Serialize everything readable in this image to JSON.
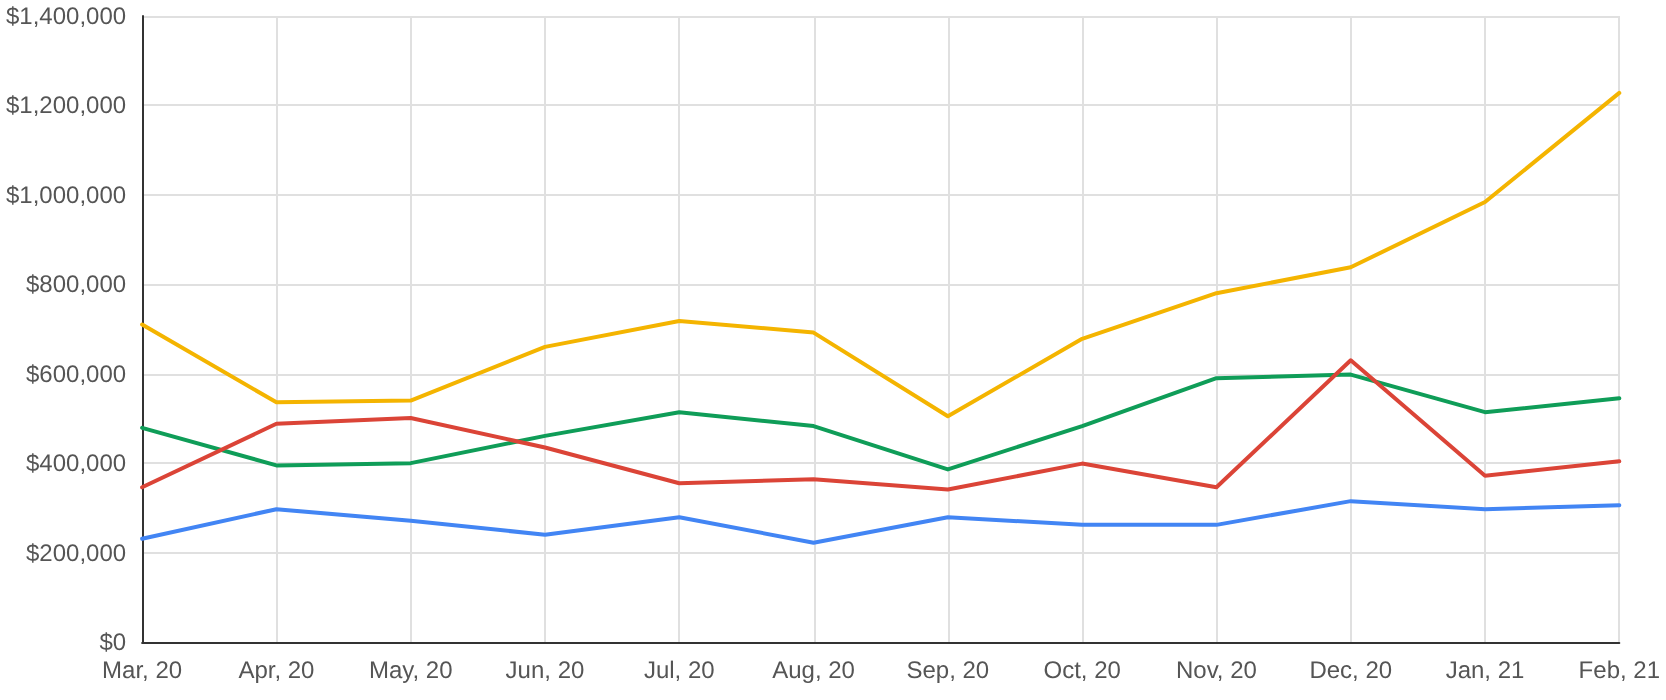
{
  "chart_data": {
    "type": "line",
    "categories": [
      "Mar, 20",
      "Apr, 20",
      "May, 20",
      "Jun, 20",
      "Jul, 20",
      "Aug, 20",
      "Sep, 20",
      "Oct, 20",
      "Nov, 20",
      "Dec, 20",
      "Jan, 21",
      "Feb, 21"
    ],
    "series": [
      {
        "color": "#f4b400",
        "values": [
          710000,
          536000,
          540000,
          660000,
          718000,
          692000,
          505000,
          678000,
          780000,
          838000,
          984000,
          1228000
        ]
      },
      {
        "color": "#0f9d58",
        "values": [
          479000,
          395000,
          400000,
          461000,
          514000,
          483000,
          386000,
          483000,
          590000,
          598000,
          514000,
          545000
        ]
      },
      {
        "color": "#db4437",
        "values": [
          346000,
          488000,
          501000,
          435000,
          355000,
          364000,
          341000,
          399000,
          346000,
          630000,
          372000,
          404000
        ]
      },
      {
        "color": "#4285f4",
        "values": [
          231000,
          297000,
          271000,
          240000,
          279000,
          222000,
          279000,
          262000,
          262000,
          315000,
          297000,
          306000
        ]
      }
    ],
    "ylim": [
      0,
      1400000
    ],
    "yticks": [
      {
        "value": 0,
        "label": "$0"
      },
      {
        "value": 200000,
        "label": "$200,000"
      },
      {
        "value": 400000,
        "label": "$400,000"
      },
      {
        "value": 600000,
        "label": "$600,000"
      },
      {
        "value": 800000,
        "label": "$800,000"
      },
      {
        "value": 1000000,
        "label": "$1,000,000"
      },
      {
        "value": 1200000,
        "label": "$1,200,000"
      },
      {
        "value": 1400000,
        "label": "$1,400,000"
      }
    ],
    "grid": true,
    "marker": "none",
    "line_style": "solid"
  }
}
